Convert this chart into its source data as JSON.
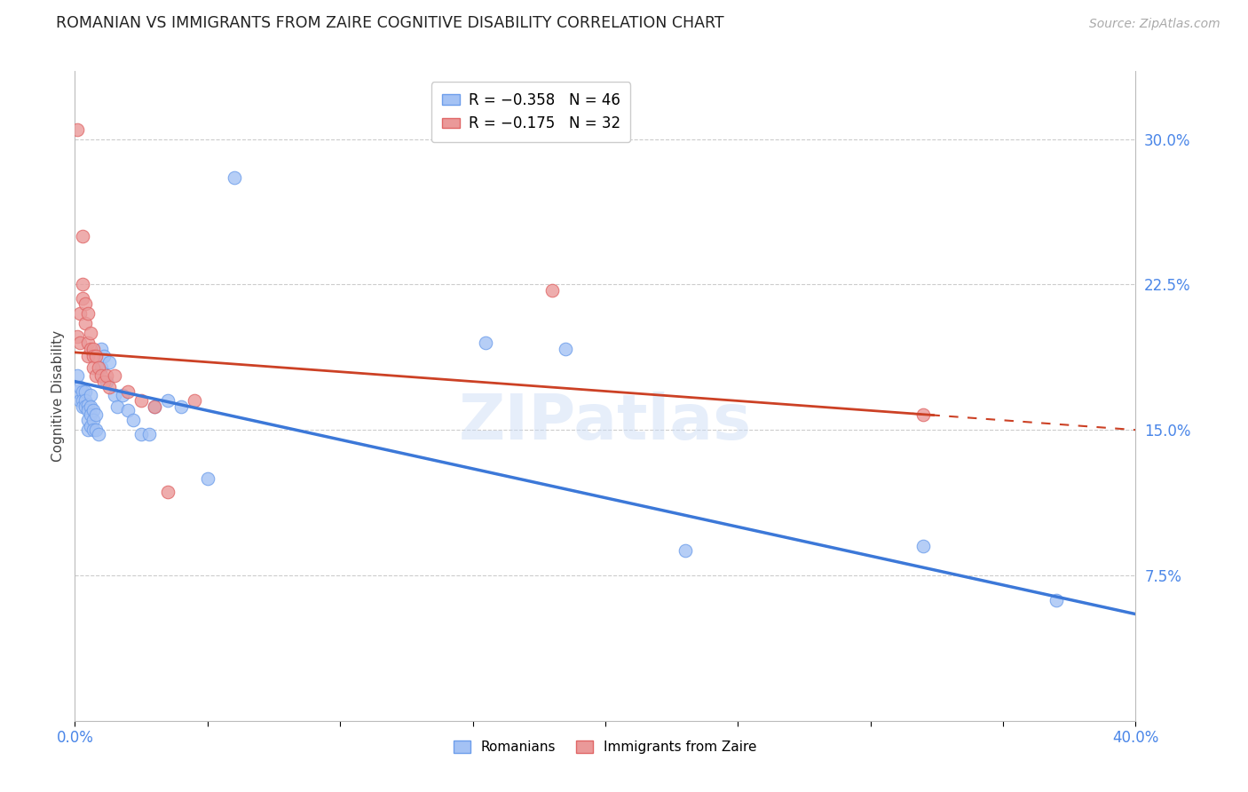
{
  "title": "ROMANIAN VS IMMIGRANTS FROM ZAIRE COGNITIVE DISABILITY CORRELATION CHART",
  "source": "Source: ZipAtlas.com",
  "ylabel": "Cognitive Disability",
  "yticks": [
    0.075,
    0.15,
    0.225,
    0.3
  ],
  "ytick_labels": [
    "7.5%",
    "15.0%",
    "22.5%",
    "30.0%"
  ],
  "xlim": [
    0.0,
    0.4
  ],
  "ylim": [
    0.0,
    0.335
  ],
  "xtick_positions": [
    0.0,
    0.05,
    0.1,
    0.15,
    0.2,
    0.25,
    0.3,
    0.35,
    0.4
  ],
  "xtick_labels": [
    "0.0%",
    "",
    "",
    "",
    "",
    "",
    "",
    "",
    "40.0%"
  ],
  "blue_face_color": "#a4c2f4",
  "blue_edge_color": "#6d9eeb",
  "pink_face_color": "#ea9999",
  "pink_edge_color": "#e06666",
  "blue_line_color": "#3c78d8",
  "pink_line_color": "#cc4125",
  "tick_label_color": "#4a86e8",
  "legend_blue_label": "R = −0.358   N = 46",
  "legend_pink_label": "R = −0.175   N = 32",
  "romanians_label": "Romanians",
  "zaire_label": "Immigrants from Zaire",
  "watermark": "ZIPatlas",
  "grid_color": "#cccccc",
  "background_color": "#ffffff",
  "blue_x": [
    0.001,
    0.001,
    0.002,
    0.002,
    0.003,
    0.003,
    0.003,
    0.004,
    0.004,
    0.004,
    0.005,
    0.005,
    0.005,
    0.005,
    0.006,
    0.006,
    0.006,
    0.006,
    0.007,
    0.007,
    0.007,
    0.008,
    0.008,
    0.009,
    0.01,
    0.01,
    0.011,
    0.012,
    0.013,
    0.015,
    0.016,
    0.018,
    0.02,
    0.022,
    0.025,
    0.028,
    0.03,
    0.035,
    0.04,
    0.05,
    0.06,
    0.155,
    0.185,
    0.23,
    0.32,
    0.37
  ],
  "blue_y": [
    0.178,
    0.17,
    0.172,
    0.165,
    0.17,
    0.165,
    0.162,
    0.17,
    0.165,
    0.162,
    0.163,
    0.16,
    0.155,
    0.15,
    0.168,
    0.162,
    0.158,
    0.152,
    0.16,
    0.155,
    0.15,
    0.158,
    0.15,
    0.148,
    0.192,
    0.182,
    0.188,
    0.175,
    0.185,
    0.168,
    0.162,
    0.168,
    0.16,
    0.155,
    0.148,
    0.148,
    0.162,
    0.165,
    0.162,
    0.125,
    0.28,
    0.195,
    0.192,
    0.088,
    0.09,
    0.062
  ],
  "pink_x": [
    0.001,
    0.001,
    0.002,
    0.002,
    0.003,
    0.003,
    0.003,
    0.004,
    0.004,
    0.005,
    0.005,
    0.005,
    0.006,
    0.006,
    0.007,
    0.007,
    0.007,
    0.008,
    0.008,
    0.009,
    0.01,
    0.011,
    0.012,
    0.013,
    0.015,
    0.02,
    0.025,
    0.03,
    0.035,
    0.045,
    0.18,
    0.32
  ],
  "pink_y": [
    0.305,
    0.198,
    0.195,
    0.21,
    0.218,
    0.225,
    0.25,
    0.205,
    0.215,
    0.195,
    0.21,
    0.188,
    0.2,
    0.192,
    0.192,
    0.188,
    0.182,
    0.188,
    0.178,
    0.182,
    0.178,
    0.175,
    0.178,
    0.172,
    0.178,
    0.17,
    0.165,
    0.162,
    0.118,
    0.165,
    0.222,
    0.158
  ],
  "blue_intercept": 0.175,
  "blue_slope": -0.3,
  "pink_intercept": 0.19,
  "pink_slope": -0.1
}
